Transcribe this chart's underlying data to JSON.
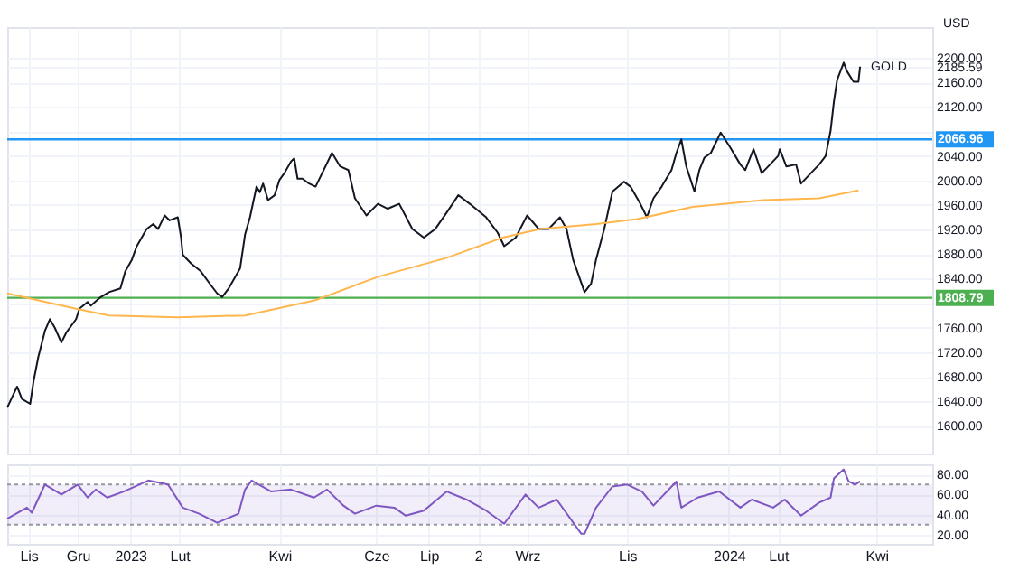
{
  "chart_data": [
    {
      "type": "line",
      "xlim": [
        "2022-10-19",
        "2024-05-05"
      ],
      "ylim": [
        1555,
        2250
      ],
      "grid": true,
      "tick_labels": "y",
      "xticks": [
        {
          "value": "2022-11-01",
          "label": null
        },
        {
          "value": "2022-12-01",
          "label": null
        },
        {
          "value": "2023-01-02",
          "label": null
        },
        {
          "value": "2023-02-01",
          "label": null
        },
        {
          "value": "2023-04-03",
          "label": null
        },
        {
          "value": "2023-06-01",
          "label": null
        },
        {
          "value": "2023-07-03",
          "label": null
        },
        {
          "value": "2023-08-02",
          "label": null
        },
        {
          "value": "2023-09-01",
          "label": null
        },
        {
          "value": "2023-11-01",
          "label": null
        },
        {
          "value": "2024-01-02",
          "label": null
        },
        {
          "value": "2024-02-01",
          "label": null
        },
        {
          "value": "2024-04-01",
          "label": null
        }
      ],
      "yticks": [
        {
          "value": 1600,
          "label": "1600.00"
        },
        {
          "value": 1640,
          "label": "1640.00"
        },
        {
          "value": 1680,
          "label": "1680.00"
        },
        {
          "value": 1720,
          "label": "1720.00"
        },
        {
          "value": 1760,
          "label": "1760.00"
        },
        {
          "value": 1800,
          "label": null
        },
        {
          "value": 1840,
          "label": "1840.00"
        },
        {
          "value": 1880,
          "label": "1880.00"
        },
        {
          "value": 1920,
          "label": "1920.00"
        },
        {
          "value": 1960,
          "label": "1960.00"
        },
        {
          "value": 2000,
          "label": "2000.00"
        },
        {
          "value": 2040,
          "label": "2040.00"
        },
        {
          "value": 2080,
          "label": null
        },
        {
          "value": 2120,
          "label": "2120.00"
        },
        {
          "value": 2160,
          "label": "2160.00"
        },
        {
          "value": 2185.59,
          "label": "2185.59"
        },
        {
          "value": 2200,
          "label": "2200.00"
        }
      ],
      "series": [
        {
          "color": "#131722",
          "x": [
            "2022-10-19",
            "2022-10-25",
            "2022-10-28",
            "2022-11-02",
            "2022-11-04",
            "2022-11-07",
            "2022-11-11",
            "2022-11-14",
            "2022-11-17",
            "2022-11-21",
            "2022-11-24",
            "2022-11-30",
            "2022-12-02",
            "2022-12-07",
            "2022-12-09",
            "2022-12-15",
            "2022-12-20",
            "2022-12-27",
            "2022-12-30",
            "2023-01-03",
            "2023-01-06",
            "2023-01-12",
            "2023-01-16",
            "2023-01-19",
            "2023-01-23",
            "2023-01-26",
            "2023-01-31",
            "2023-02-02",
            "2023-02-03",
            "2023-02-08",
            "2023-02-14",
            "2023-02-20",
            "2023-02-24",
            "2023-02-27",
            "2023-03-03",
            "2023-03-10",
            "2023-03-13",
            "2023-03-16",
            "2023-03-20",
            "2023-03-22",
            "2023-03-24",
            "2023-03-27",
            "2023-03-31",
            "2023-04-03",
            "2023-04-06",
            "2023-04-10",
            "2023-04-12",
            "2023-04-14",
            "2023-04-17",
            "2023-04-21",
            "2023-04-25",
            "2023-05-05",
            "2023-05-10",
            "2023-05-15",
            "2023-05-19",
            "2023-05-26",
            "2023-06-02",
            "2023-06-08",
            "2023-06-15",
            "2023-06-23",
            "2023-06-30",
            "2023-07-07",
            "2023-07-14",
            "2023-07-21",
            "2023-07-28",
            "2023-08-07",
            "2023-08-14",
            "2023-08-18",
            "2023-08-25",
            "2023-09-01",
            "2023-09-08",
            "2023-09-14",
            "2023-09-21",
            "2023-09-25",
            "2023-09-29",
            "2023-10-06",
            "2023-10-10",
            "2023-10-13",
            "2023-10-18",
            "2023-10-23",
            "2023-10-30",
            "2023-11-03",
            "2023-11-09",
            "2023-11-13",
            "2023-11-17",
            "2023-11-22",
            "2023-11-28",
            "2023-12-01",
            "2023-12-04",
            "2023-12-07",
            "2023-12-12",
            "2023-12-15",
            "2023-12-18",
            "2023-12-22",
            "2023-12-28",
            "2024-01-03",
            "2024-01-09",
            "2024-01-12",
            "2024-01-17",
            "2024-01-22",
            "2024-01-26",
            "2024-02-01",
            "2024-02-02",
            "2024-02-06",
            "2024-02-12",
            "2024-02-15",
            "2024-02-21",
            "2024-02-26",
            "2024-03-01",
            "2024-03-04",
            "2024-03-06",
            "2024-03-08",
            "2024-03-12",
            "2024-03-14",
            "2024-03-18",
            "2024-03-21",
            "2024-03-22"
          ],
          "values": [
            1630,
            1664,
            1644,
            1636,
            1672,
            1713,
            1755,
            1774,
            1760,
            1736,
            1752,
            1774,
            1791,
            1802,
            1796,
            1810,
            1818,
            1824,
            1852,
            1871,
            1893,
            1921,
            1929,
            1921,
            1943,
            1935,
            1940,
            1907,
            1879,
            1865,
            1852,
            1830,
            1816,
            1810,
            1824,
            1857,
            1912,
            1940,
            1990,
            1981,
            1995,
            1968,
            1976,
            2001,
            2012,
            2031,
            2036,
            2003,
            2003,
            1995,
            1990,
            2045,
            2023,
            2017,
            1971,
            1943,
            1962,
            1954,
            1962,
            1921,
            1907,
            1921,
            1948,
            1976,
            1962,
            1940,
            1915,
            1893,
            1907,
            1943,
            1921,
            1921,
            1940,
            1921,
            1871,
            1818,
            1832,
            1871,
            1921,
            1982,
            1998,
            1990,
            1962,
            1940,
            1971,
            1990,
            2017,
            2045,
            2067,
            2023,
            1982,
            2017,
            2037,
            2045,
            2078,
            2053,
            2026,
            2017,
            2051,
            2012,
            2023,
            2040,
            2051,
            2023,
            2026,
            1995,
            2012,
            2026,
            2040,
            2081,
            2128,
            2164,
            2192,
            2178,
            2161,
            2161,
            2185.59
          ]
        },
        {
          "color": "#ffb74d",
          "x": [
            "2022-10-19",
            "2022-11-30",
            "2022-12-20",
            "2023-01-31",
            "2023-03-13",
            "2023-04-25",
            "2023-06-02",
            "2023-07-14",
            "2023-08-17",
            "2023-09-09",
            "2023-10-13",
            "2023-11-07",
            "2023-12-11",
            "2024-01-23",
            "2024-02-26",
            "2024-03-21"
          ],
          "values": [
            1816,
            1791,
            1780,
            1777,
            1780,
            1805,
            1843,
            1874,
            1907,
            1921,
            1929,
            1937,
            1957,
            1968,
            1971,
            1984
          ]
        }
      ],
      "ref_lines": [
        {
          "axis": "y",
          "value": 2066.96,
          "label": "2066.96",
          "color": "#2196f3"
        },
        {
          "axis": "y",
          "value": 1808.79,
          "label": "1808.79",
          "color": "#4caf50"
        }
      ],
      "annotations": [
        "USD",
        {
          "text": "GOLD",
          "x": "2024-03-22",
          "y": 2185.59
        }
      ]
    },
    {
      "type": "line",
      "xlim": [
        "2022-10-19",
        "2024-05-05"
      ],
      "ylim": [
        11,
        90
      ],
      "grid": true,
      "xticks": [
        {
          "value": "2022-11-01",
          "label": "Lis"
        },
        {
          "value": "2022-12-01",
          "label": "Gru"
        },
        {
          "value": "2023-01-02",
          "label": "2023"
        },
        {
          "value": "2023-02-01",
          "label": "Lut"
        },
        {
          "value": "2023-04-03",
          "label": "Kwi"
        },
        {
          "value": "2023-06-01",
          "label": "Cze"
        },
        {
          "value": "2023-07-03",
          "label": "Lip"
        },
        {
          "value": "2023-08-02",
          "label": "2"
        },
        {
          "value": "2023-09-01",
          "label": "Wrz"
        },
        {
          "value": "2023-11-01",
          "label": "Lis"
        },
        {
          "value": "2024-01-02",
          "label": "2024"
        },
        {
          "value": "2024-02-01",
          "label": "Lut"
        },
        {
          "value": "2024-04-01",
          "label": "Kwi"
        }
      ],
      "yticks": [
        {
          "value": 20,
          "label": "20.00"
        },
        {
          "value": 40,
          "label": "40.00"
        },
        {
          "value": 60,
          "label": "60.00"
        },
        {
          "value": 80,
          "label": "80.00"
        }
      ],
      "bands": [
        {
          "axis": "y",
          "from": 30,
          "to": 70,
          "color": "#7e57c2"
        }
      ],
      "ref_lines": [
        {
          "axis": "y",
          "value": 70,
          "color": "#9598a1",
          "line_style": "dotted"
        },
        {
          "axis": "y",
          "value": 30,
          "color": "#9598a1",
          "line_style": "dotted"
        }
      ],
      "series": [
        {
          "color": "#7e57c2",
          "x": [
            "2022-10-19",
            "2022-10-31",
            "2022-11-03",
            "2022-11-11",
            "2022-11-21",
            "2022-12-01",
            "2022-12-07",
            "2022-12-12",
            "2022-12-19",
            "2022-12-29",
            "2023-01-13",
            "2023-01-25",
            "2023-02-03",
            "2023-02-13",
            "2023-02-24",
            "2023-03-09",
            "2023-03-13",
            "2023-03-17",
            "2023-03-29",
            "2023-04-10",
            "2023-04-24",
            "2023-05-02",
            "2023-05-12",
            "2023-05-19",
            "2023-06-01",
            "2023-06-12",
            "2023-06-19",
            "2023-06-30",
            "2023-07-14",
            "2023-07-26",
            "2023-08-07",
            "2023-08-18",
            "2023-08-31",
            "2023-09-08",
            "2023-09-19",
            "2023-10-04",
            "2023-10-06",
            "2023-10-13",
            "2023-10-23",
            "2023-11-01",
            "2023-11-10",
            "2023-11-17",
            "2023-12-01",
            "2023-12-04",
            "2023-12-14",
            "2023-12-27",
            "2024-01-09",
            "2024-01-16",
            "2024-01-29",
            "2024-02-05",
            "2024-02-15",
            "2024-02-26",
            "2024-03-04",
            "2024-03-06",
            "2024-03-12",
            "2024-03-15",
            "2024-03-19",
            "2024-03-22"
          ],
          "values": [
            36,
            47,
            42,
            70,
            60,
            70,
            57,
            65,
            57,
            63,
            74,
            70,
            47,
            41,
            32,
            41,
            65,
            74,
            63,
            65,
            57,
            65,
            49,
            41,
            49,
            47,
            39,
            44,
            63,
            55,
            44,
            31,
            60,
            47,
            55,
            21,
            21,
            47,
            68,
            70,
            63,
            49,
            73,
            47,
            57,
            63,
            47,
            55,
            47,
            55,
            39,
            52,
            57,
            76,
            85,
            73,
            70,
            73
          ]
        }
      ]
    }
  ]
}
